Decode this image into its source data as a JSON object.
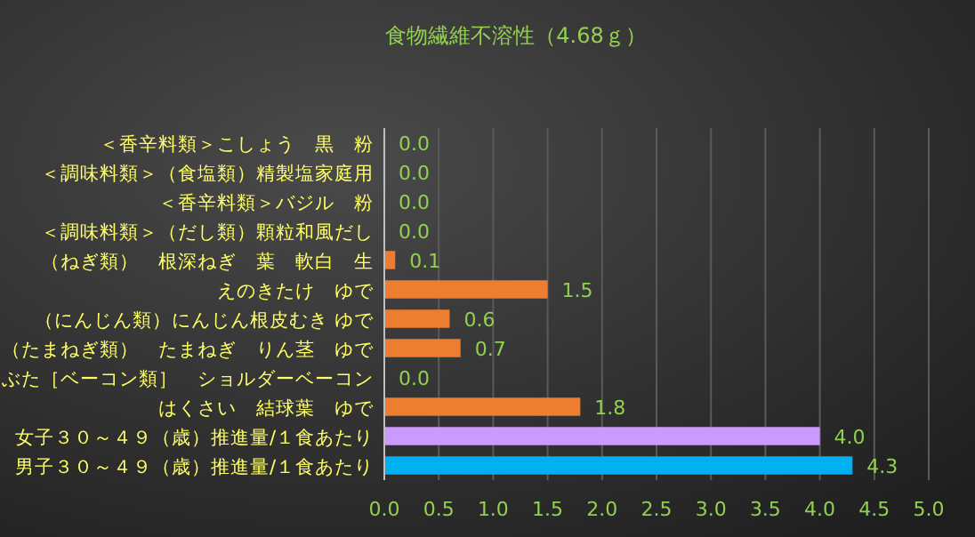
{
  "chart_data": {
    "type": "bar",
    "orientation": "horizontal",
    "title": "食物繊維不溶性（4.68ｇ）",
    "categories": [
      "＜香辛料類＞こしょう　黒　粉",
      "＜調味料類＞（食塩類）精製塩家庭用",
      "＜香辛料類＞バジル　粉",
      "＜調味料類＞（だし類）顆粒和風だし",
      "（ねぎ類）　根深ねぎ　葉　軟白　生",
      "えのきたけ　ゆで",
      "（にんじん類）にんじん根皮むき ゆで",
      "（たまねぎ類）　たまねぎ　りん茎　ゆで",
      "ぶた［ベーコン類］　ショルダーベーコン",
      "はくさい　結球葉　ゆで",
      "女子３０～４９（歳）推進量/１食あたり",
      "男子３０～４９（歳）推進量/１食あたり"
    ],
    "values": [
      0.0,
      0.0,
      0.0,
      0.0,
      0.1,
      1.5,
      0.6,
      0.7,
      0.0,
      1.8,
      4.0,
      4.3
    ],
    "colors": [
      "#ed7d31",
      "#ed7d31",
      "#ed7d31",
      "#ed7d31",
      "#ed7d31",
      "#ed7d31",
      "#ed7d31",
      "#ed7d31",
      "#ed7d31",
      "#ed7d31",
      "#cc99ff",
      "#00b0f0"
    ],
    "value_labels": [
      "0.0",
      "0.0",
      "0.0",
      "0.0",
      "0.1",
      "1.5",
      "0.6",
      "0.7",
      "0.0",
      "1.8",
      "4.0",
      "4.3"
    ],
    "xlim": [
      0,
      5
    ],
    "xticks": [
      {
        "value": 0,
        "label": "0.0"
      },
      0.5,
      {
        "value": 1,
        "label": "1.0"
      },
      1.5,
      {
        "value": 2,
        "label": "2.0"
      },
      2.5,
      {
        "value": 3,
        "label": "3.0"
      },
      3.5,
      {
        "value": 4,
        "label": "4.0"
      },
      4.5,
      {
        "value": 5,
        "label": "5.0"
      }
    ],
    "grid": "x"
  }
}
